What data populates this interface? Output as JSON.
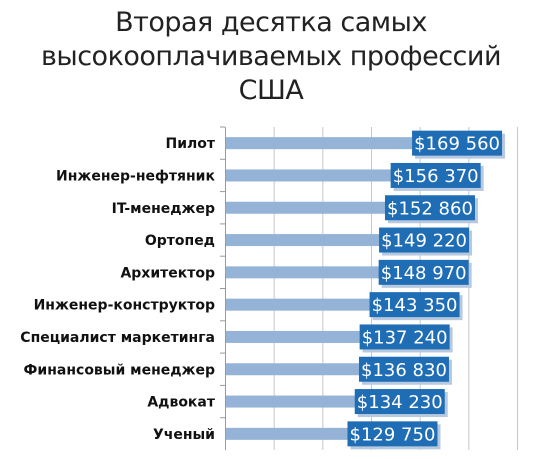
{
  "chart_data": {
    "type": "bar",
    "orientation": "horizontal",
    "title_lines": [
      "Вторая десятка самых",
      "высокооплачиваемых профессий",
      "США"
    ],
    "categories": [
      "Пилот",
      "Инженер-нефтяник",
      "IT-менеджер",
      "Ортопед",
      "Архитектор",
      "Инженер-конструктор",
      "Специалист маркетинга",
      "Финансовый менеджер",
      "Адвокат",
      "Ученый"
    ],
    "values": [
      169560,
      156370,
      152860,
      149220,
      148970,
      143350,
      137240,
      136830,
      134230,
      129750
    ],
    "value_labels": [
      "$169 560",
      "$156 370",
      "$152 860",
      "$149 220",
      "$148 970",
      "$143 350",
      "$137 240",
      "$136 830",
      "$134 230",
      "$129 750"
    ],
    "xlim": [
      0,
      180000
    ],
    "grid": true,
    "bar_color": "#95b3d7",
    "label_bg_color": "#1f6db5"
  }
}
